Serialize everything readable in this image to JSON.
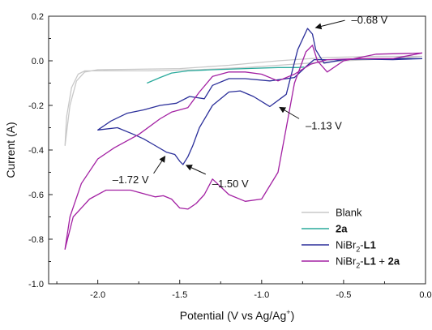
{
  "chart_data": {
    "type": "line",
    "title": "",
    "xlabel": "Potential (V vs Ag/Ag",
    "xlabel_sup": "+",
    "xlabel_end": ")",
    "ylabel": "Current (A)",
    "xlim": [
      -2.3,
      0.0
    ],
    "ylim": [
      -1.0,
      0.2
    ],
    "x_ticks": [
      "-2.0",
      "-1.5",
      "-1.0",
      "-0.5",
      "0.0"
    ],
    "x_tick_values": [
      -2.0,
      -1.5,
      -1.0,
      -0.5,
      0.0
    ],
    "y_ticks": [
      "0.2",
      "0.0",
      "-0.2",
      "-0.4",
      "-0.6",
      "-0.8",
      "-1.0"
    ],
    "y_tick_values": [
      0.2,
      0.0,
      -0.2,
      -0.4,
      -0.6,
      -0.8,
      -1.0
    ],
    "grid": false,
    "legend_position": "bottom-right",
    "annotations": [
      {
        "text": "–0.68 V",
        "x": -0.68,
        "y": 0.145
      },
      {
        "text": "–1.13 V",
        "x": -0.9,
        "y": -0.205
      },
      {
        "text": "–1.50 V",
        "x": -1.47,
        "y": -0.465
      },
      {
        "text": "–1.72 V",
        "x": -1.58,
        "y": -0.425
      }
    ],
    "series": [
      {
        "name": "Blank",
        "color": "#c8c8c8",
        "x": [
          -0.02,
          -0.3,
          -0.6,
          -0.9,
          -1.2,
          -1.5,
          -1.8,
          -2.0,
          -2.08,
          -2.13,
          -2.17,
          -2.2,
          -2.19,
          -2.16,
          -2.12,
          -2.08,
          -2.0,
          -1.7,
          -1.4,
          -1.1,
          -0.8,
          -0.5,
          -0.2,
          -0.02
        ],
        "y": [
          0.02,
          0.02,
          0.015,
          0.0,
          -0.02,
          -0.035,
          -0.038,
          -0.04,
          -0.05,
          -0.09,
          -0.2,
          -0.38,
          -0.25,
          -0.12,
          -0.06,
          -0.045,
          -0.045,
          -0.045,
          -0.04,
          -0.03,
          -0.015,
          0.0,
          0.01,
          0.02
        ]
      },
      {
        "name": "2a",
        "name_bold": true,
        "color": "#2aaa9c",
        "x": [
          -1.7,
          -1.62,
          -1.55,
          -1.45,
          -1.3,
          -1.1,
          -0.9,
          -0.78,
          -0.74
        ],
        "y": [
          -0.1,
          -0.075,
          -0.055,
          -0.045,
          -0.04,
          -0.035,
          -0.03,
          -0.03,
          -0.028
        ]
      },
      {
        "name": "NiBr₂-L1",
        "name_base": "NiBr",
        "name_sub": "2",
        "name_tail": "-L1",
        "color": "#2b2f9a",
        "x": [
          -0.02,
          -0.3,
          -0.5,
          -0.62,
          -0.67,
          -0.69,
          -0.72,
          -0.78,
          -0.85,
          -0.95,
          -1.05,
          -1.13,
          -1.2,
          -1.3,
          -1.38,
          -1.42,
          -1.45,
          -1.48,
          -1.5,
          -1.53,
          -1.58,
          -1.65,
          -1.72,
          -1.78,
          -1.88,
          -2.0,
          -1.92,
          -1.82,
          -1.72,
          -1.62,
          -1.52,
          -1.44,
          -1.35,
          -1.3,
          -1.2,
          -1.1,
          -0.95,
          -0.8,
          -0.72,
          -0.68,
          -0.64,
          -0.55,
          -0.4,
          -0.2,
          -0.02
        ],
        "y": [
          0.01,
          0.01,
          0.005,
          -0.01,
          0.05,
          0.12,
          0.145,
          0.05,
          -0.15,
          -0.205,
          -0.16,
          -0.135,
          -0.14,
          -0.2,
          -0.3,
          -0.38,
          -0.43,
          -0.465,
          -0.45,
          -0.42,
          -0.41,
          -0.38,
          -0.35,
          -0.33,
          -0.3,
          -0.31,
          -0.27,
          -0.235,
          -0.22,
          -0.2,
          -0.19,
          -0.16,
          -0.17,
          -0.11,
          -0.08,
          -0.08,
          -0.09,
          -0.075,
          -0.02,
          0.005,
          0.005,
          0.005,
          0.008,
          0.005,
          0.01
        ]
      },
      {
        "name": "NiBr₂-L1 + 2a",
        "name_base": "NiBr",
        "name_sub": "2",
        "name_tail": "-L1",
        "name_end": " + 2a",
        "color": "#a321a3",
        "x": [
          -0.02,
          -0.3,
          -0.5,
          -0.6,
          -0.66,
          -0.69,
          -0.73,
          -0.8,
          -0.85,
          -0.9,
          -1.0,
          -1.1,
          -1.2,
          -1.3,
          -1.35,
          -1.4,
          -1.45,
          -1.5,
          -1.55,
          -1.6,
          -1.65,
          -1.7,
          -1.8,
          -1.95,
          -2.05,
          -2.15,
          -2.2,
          -2.17,
          -2.1,
          -2.0,
          -1.9,
          -1.75,
          -1.62,
          -1.55,
          -1.45,
          -1.38,
          -1.3,
          -1.2,
          -1.1,
          -1.0,
          -0.9,
          -0.8,
          -0.7,
          -0.6,
          -0.4,
          -0.2,
          -0.02
        ],
        "y": [
          0.035,
          0.03,
          0.0,
          -0.05,
          0.0,
          0.07,
          0.04,
          -0.1,
          -0.3,
          -0.5,
          -0.62,
          -0.63,
          -0.6,
          -0.53,
          -0.6,
          -0.64,
          -0.665,
          -0.66,
          -0.62,
          -0.605,
          -0.61,
          -0.6,
          -0.58,
          -0.58,
          -0.62,
          -0.7,
          -0.845,
          -0.7,
          -0.55,
          -0.44,
          -0.39,
          -0.33,
          -0.26,
          -0.23,
          -0.21,
          -0.14,
          -0.07,
          -0.05,
          -0.05,
          -0.06,
          -0.09,
          -0.06,
          -0.015,
          0.005,
          0.01,
          0.01,
          0.035
        ]
      }
    ]
  }
}
